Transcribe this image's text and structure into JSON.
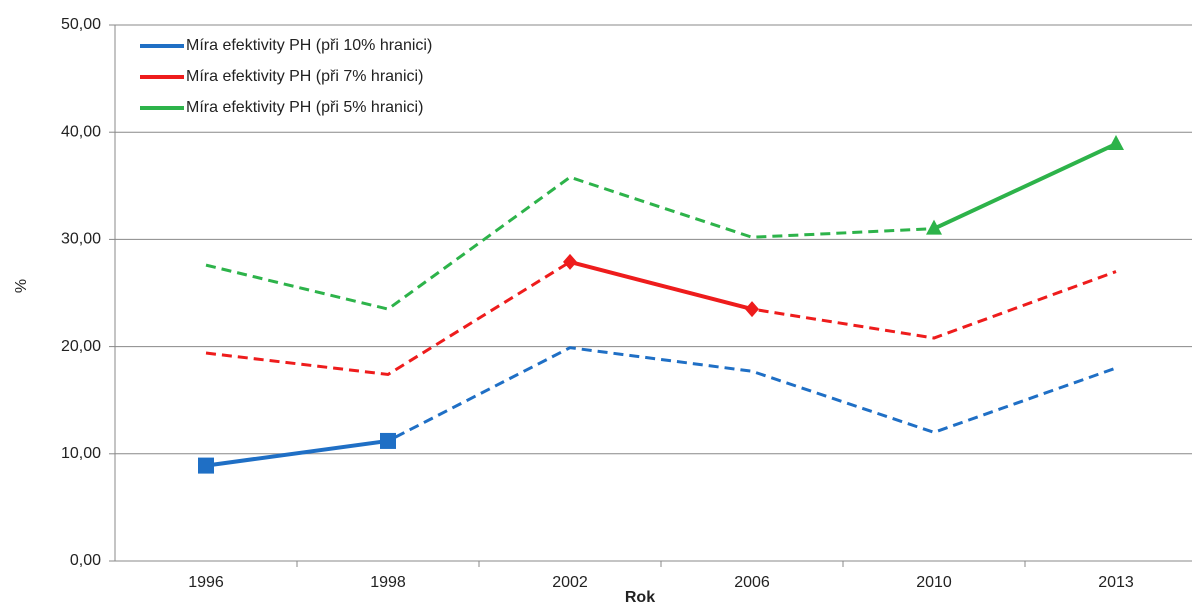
{
  "chart_data": {
    "type": "line",
    "x_label": "Rok",
    "y_label": "%",
    "categories": [
      "1996",
      "1998",
      "2002",
      "2006",
      "2010",
      "2013"
    ],
    "series": [
      {
        "name": "Míra efektivity PH (při 10% hranici)",
        "color": "#1f6fc5",
        "marker": "square",
        "solid": [
          0,
          1
        ],
        "values": [
          8.9,
          11.2,
          19.9,
          17.7,
          12.0,
          18.0
        ]
      },
      {
        "name": "Míra efektivity PH (při 7% hranici)",
        "color": "#ee1c1c",
        "marker": "diamond",
        "solid": [
          2,
          3
        ],
        "values": [
          19.4,
          17.4,
          27.9,
          23.5,
          20.8,
          27.0
        ]
      },
      {
        "name": "Míra efektivity PH (při 5% hranici)",
        "color": "#2db34a",
        "marker": "triangle",
        "solid": [
          4,
          5
        ],
        "values": [
          27.6,
          23.5,
          35.8,
          30.2,
          31.0,
          38.9
        ]
      }
    ],
    "ylim": [
      0,
      50
    ],
    "yticks": [
      {
        "value": 0,
        "label": "0,00"
      },
      {
        "value": 10,
        "label": "10,00"
      },
      {
        "value": 20,
        "label": "20,00"
      },
      {
        "value": 30,
        "label": "30,00"
      },
      {
        "value": 40,
        "label": "40,00"
      },
      {
        "value": 50,
        "label": "50,00"
      }
    ],
    "grid": true,
    "legend": "top-left"
  }
}
